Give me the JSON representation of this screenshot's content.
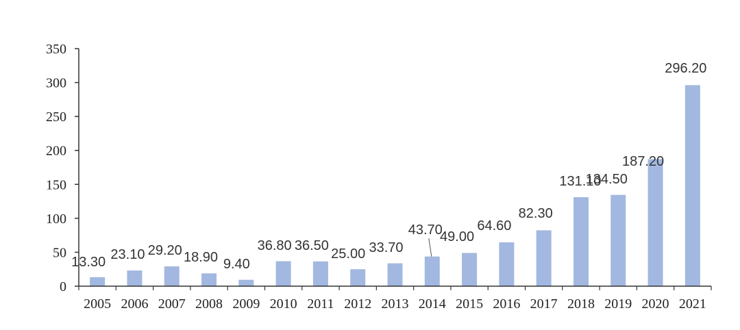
{
  "chart_data": {
    "type": "bar",
    "categories": [
      "2005",
      "2006",
      "2007",
      "2008",
      "2009",
      "2010",
      "2011",
      "2012",
      "2013",
      "2014",
      "2015",
      "2016",
      "2017",
      "2018",
      "2019",
      "2020",
      "2021"
    ],
    "values": [
      13.3,
      23.1,
      29.2,
      18.9,
      9.4,
      36.8,
      36.5,
      25.0,
      33.7,
      43.7,
      49.0,
      64.6,
      82.3,
      131.1,
      134.5,
      187.2,
      296.2
    ],
    "data_labels": [
      "13.30",
      "23.10",
      "29.20",
      "18.90",
      "9.40",
      "36.80",
      "36.50",
      "25.00",
      "33.70",
      "43.70",
      "49.00",
      "64.60",
      "82.30",
      "131.10",
      "134.50",
      "187.20",
      "296.20"
    ],
    "y_ticks": [
      "0",
      "50",
      "100",
      "150",
      "200",
      "250",
      "300",
      "350"
    ],
    "ylim": [
      0,
      350
    ],
    "grid": false,
    "legend": "none",
    "bar_color": "#a3b8e0",
    "axis_color": "#333333"
  }
}
